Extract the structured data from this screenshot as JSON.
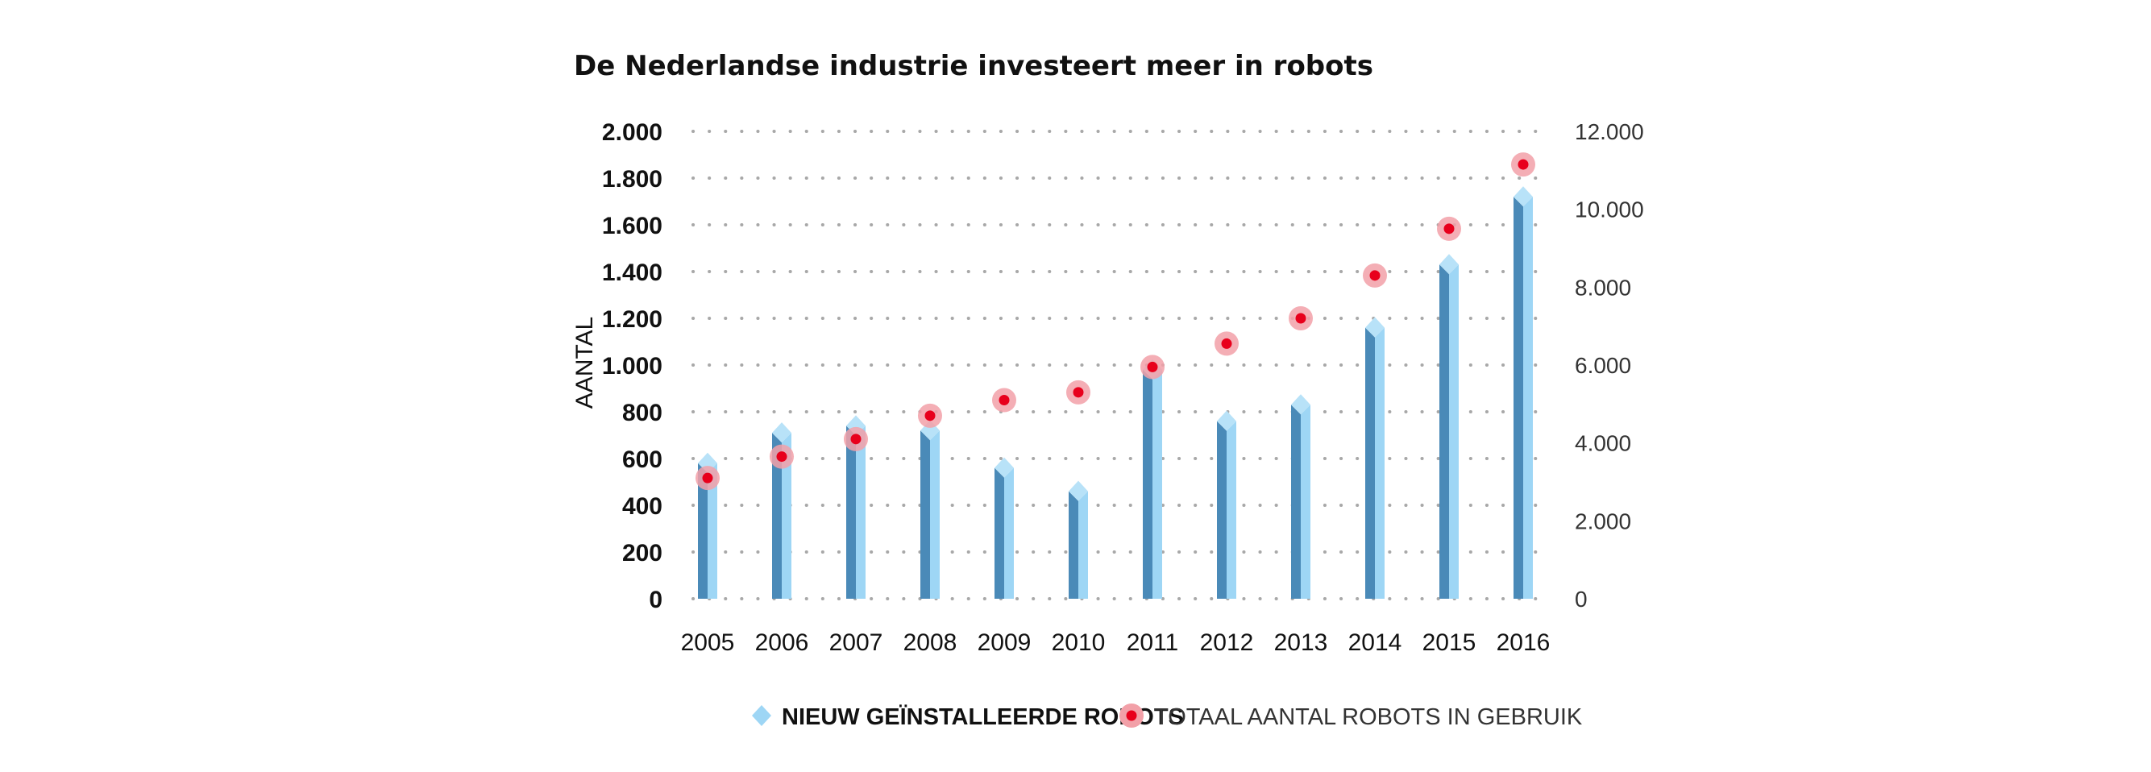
{
  "chart_data": {
    "type": "bar",
    "title": "De Nederlandse industrie investeert meer in robots",
    "ylabel": "AANTAL",
    "categories": [
      "2005",
      "2006",
      "2007",
      "2008",
      "2009",
      "2010",
      "2011",
      "2012",
      "2013",
      "2014",
      "2015",
      "2016"
    ],
    "series": [
      {
        "name": "NIEUW GEÏNSTALLEERDE ROBOTS",
        "type": "bar",
        "axis": "left",
        "color": "#9ed6f5",
        "shade": "#4a8ab8",
        "values": [
          580,
          710,
          740,
          720,
          560,
          460,
          980,
          760,
          830,
          1160,
          1430,
          1720
        ]
      },
      {
        "name": "TOTAAL AANTAL ROBOTS IN GEBRUIK",
        "type": "scatter",
        "axis": "right",
        "color": "#e8001c",
        "halo": "#f2a0a8",
        "values": [
          3100,
          3650,
          4100,
          4700,
          5100,
          5300,
          5950,
          6550,
          7200,
          8300,
          9500,
          11150
        ]
      }
    ],
    "y_left": {
      "ylim": [
        0,
        2000
      ],
      "ticks": [
        0,
        200,
        400,
        600,
        800,
        1000,
        1200,
        1400,
        1600,
        1800,
        2000
      ],
      "tick_labels": [
        "0",
        "200",
        "400",
        "600",
        "800",
        "1.000",
        "1.200",
        "1.400",
        "1.600",
        "1.800",
        "2.000"
      ]
    },
    "y_right": {
      "ylim": [
        0,
        12000
      ],
      "ticks": [
        0,
        2000,
        4000,
        6000,
        8000,
        10000,
        12000
      ],
      "tick_labels": [
        "0",
        "2.000",
        "4.000",
        "6.000",
        "8.000",
        "10.000",
        "12.000"
      ]
    },
    "grid": true,
    "legend_position": "bottom-center"
  }
}
